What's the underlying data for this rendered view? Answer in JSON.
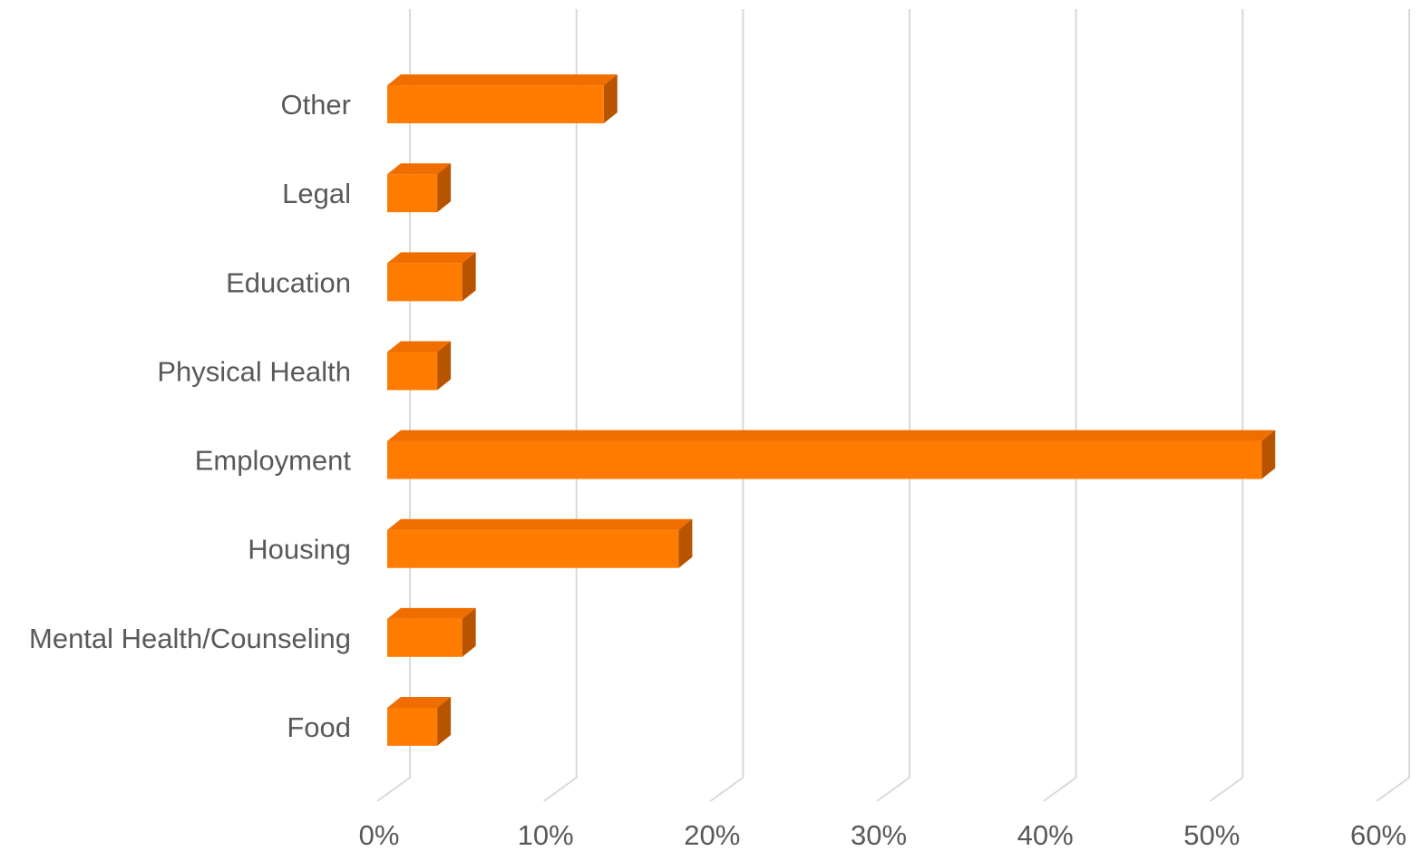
{
  "chart_data": {
    "type": "bar",
    "orientation": "horizontal",
    "style": "3d",
    "categories": [
      "Food",
      "Mental Health/Counseling",
      "Housing",
      "Employment",
      "Physical Health",
      "Education",
      "Legal",
      "Other"
    ],
    "values": [
      3,
      4.5,
      17.5,
      52.5,
      3,
      4.5,
      3,
      13
    ],
    "value_unit": "%",
    "xlim": [
      0,
      60
    ],
    "xticks": [
      "0%",
      "10%",
      "20%",
      "30%",
      "40%",
      "50%",
      "60%"
    ],
    "xtick_values": [
      0,
      10,
      20,
      30,
      40,
      50,
      60
    ],
    "title": "",
    "xlabel": "",
    "ylabel": "",
    "grid": true,
    "legend": "none",
    "colors": {
      "bar_front": "#ff7c00",
      "bar_top": "#f06e00",
      "bar_side": "#b85400",
      "gridline": "#d9d9d9",
      "text": "#595959"
    }
  }
}
